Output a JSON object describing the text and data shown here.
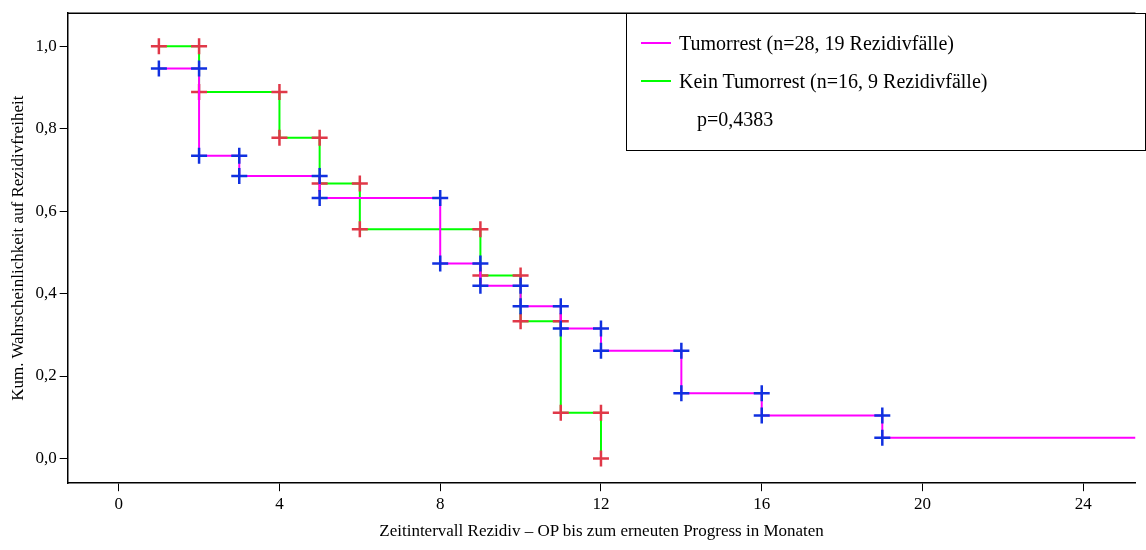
{
  "chart_data": {
    "type": "step",
    "xlabel": "Zeitintervall Rezidiv – OP bis zum erneuten Progress in Monaten",
    "ylabel": "Kum. Wahrscheinlichkeit auf Rezidivfreiheit",
    "xlim": [
      -1.27,
      25.3
    ],
    "xticks": [
      0,
      4,
      8,
      12,
      16,
      20,
      24
    ],
    "ylim": [
      -0.06,
      1.08
    ],
    "yticks": [
      {
        "value": 0,
        "label": "0,0"
      },
      {
        "value": 0.2,
        "label": "0,2"
      },
      {
        "value": 0.4,
        "label": "0,4"
      },
      {
        "value": 0.6,
        "label": "0,6"
      },
      {
        "value": 0.8,
        "label": "0,8"
      },
      {
        "value": 1,
        "label": "1,0"
      }
    ],
    "grid": false,
    "legend": "top right",
    "marker": "cross",
    "annotations": [
      "p=0,4383"
    ],
    "series": [
      {
        "name": "Tumorrest (n=28, 19 Rezidivfälle)",
        "color": "#ff00ff",
        "x": [
          1,
          2,
          2,
          3,
          3,
          5,
          5,
          8,
          8,
          9,
          9,
          10,
          10,
          11,
          11,
          12,
          12,
          14,
          14,
          16,
          16,
          19,
          19,
          25.3
        ],
        "values": [
          0.946,
          0.946,
          0.734,
          0.734,
          0.685,
          0.685,
          0.632,
          0.632,
          0.473,
          0.473,
          0.419,
          0.419,
          0.369,
          0.369,
          0.315,
          0.315,
          0.261,
          0.261,
          0.158,
          0.158,
          0.104,
          0.104,
          0.05,
          0.05
        ],
        "colors": [
          "#1030e0",
          "#1030e0",
          "#1030e0",
          "#1030e0",
          "#1030e0",
          "#1030e0",
          "#1030e0",
          "#1030e0",
          "#1030e0",
          "#1030e0",
          "#1030e0",
          "#1030e0",
          "#1030e0",
          "#1030e0",
          "#1030e0",
          "#1030e0",
          "#1030e0",
          "#1030e0",
          "#1030e0",
          "#1030e0",
          "#1030e0",
          "#1030e0",
          "#1030e0",
          null
        ]
      },
      {
        "name": "Kein Tumorrest (n=16, 9 Rezidivfälle)",
        "color": "#00ff00",
        "x": [
          1,
          2,
          2,
          4,
          4,
          5,
          5,
          6,
          6,
          9,
          9,
          10,
          10,
          11,
          11,
          12,
          12
        ],
        "values": [
          1,
          1,
          0.889,
          0.889,
          0.778,
          0.778,
          0.667,
          0.667,
          0.556,
          0.556,
          0.444,
          0.444,
          0.333,
          0.333,
          0.111,
          0.111,
          0
        ],
        "colors": [
          "#e03848",
          "#e03848",
          "#e03848",
          "#e03848",
          "#e03848",
          "#e03848",
          "#e03848",
          "#e03848",
          "#e03848",
          "#e03848",
          "#e03848",
          "#e03848",
          "#e03848",
          "#e03848",
          "#e03848",
          "#e03848",
          "#e03848"
        ]
      }
    ]
  }
}
